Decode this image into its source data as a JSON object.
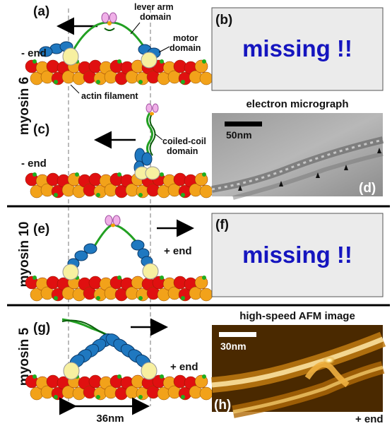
{
  "panels": {
    "a": "(a)",
    "b": "(b)",
    "c": "(c)",
    "d": "(d)",
    "e": "(e)",
    "f": "(f)",
    "g": "(g)",
    "h": "(h)"
  },
  "myosins": {
    "m6": "myosin 6",
    "m10": "myosin 10",
    "m5": "myosin 5"
  },
  "labels": {
    "lever_arm": [
      "lever arm",
      "domain"
    ],
    "motor": [
      "motor",
      "domain"
    ],
    "actin": "actin filament",
    "coiled_coil": [
      "coiled-coil",
      "domain"
    ],
    "minus_end": "- end",
    "plus_end": "+ end"
  },
  "missing_text": "missing !!",
  "em": {
    "title": "electron micrograph",
    "scale": "50nm"
  },
  "afm": {
    "title": "high-speed AFM image",
    "scale": "30nm"
  },
  "step": "36nm",
  "colors": {
    "actin_red": "#e01010",
    "actin_orange": "#f2a21a",
    "actin_green": "#1fae1f",
    "myosin_blue": "#1f78c0",
    "head_yellow": "#f7f0a0",
    "lever_green": "#22a022",
    "cargo_pink": "#f0b0e8",
    "missing_blue": "#1515bf",
    "panel_gray": "#ebebeb"
  }
}
